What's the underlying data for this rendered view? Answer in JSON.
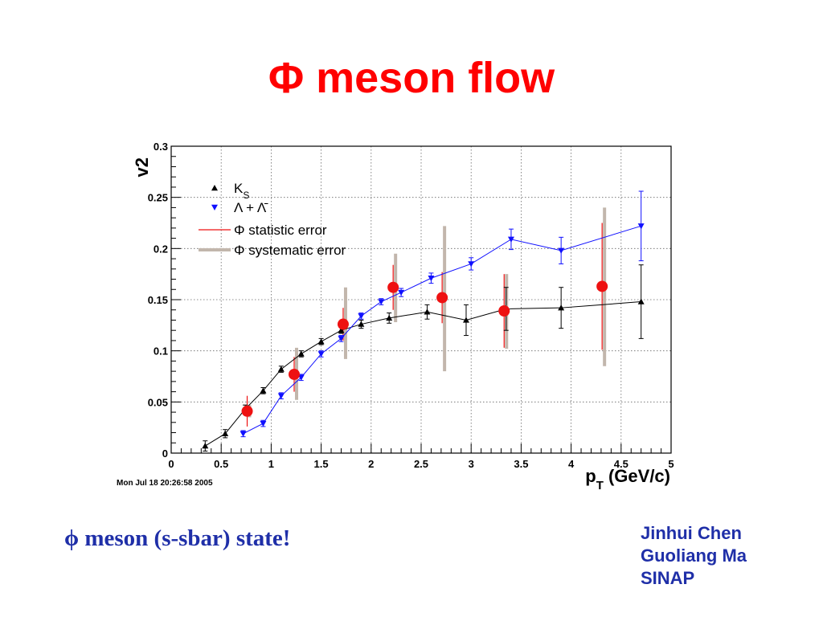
{
  "slide": {
    "title": "Φ meson flow",
    "caption": "ϕ meson (s-sbar) state!",
    "authors": [
      "Jinhui Chen",
      "Guoliang Ma",
      "SINAP"
    ]
  },
  "chart_data": {
    "type": "scatter",
    "title": "",
    "xlabel_main": "p",
    "xlabel_sub": "T",
    "xlabel_rest": " (GeV/c)",
    "ylabel": "v2",
    "xlim": [
      0,
      5
    ],
    "ylim": [
      0,
      0.3
    ],
    "x_ticks": [
      0,
      0.5,
      1,
      1.5,
      2,
      2.5,
      3,
      3.5,
      4,
      4.5,
      5
    ],
    "x_tick_labels": [
      "0",
      "0.5",
      "1",
      "1.5",
      "2",
      "2.5",
      "3",
      "3.5",
      "4",
      "4.5",
      "5"
    ],
    "y_ticks": [
      0,
      0.05,
      0.1,
      0.15,
      0.2,
      0.25,
      0.3
    ],
    "y_tick_labels": [
      "0",
      "0.05",
      "0.1",
      "0.15",
      "0.2",
      "0.25",
      "0.3"
    ],
    "grid": true,
    "legend_position": "top-left",
    "timestamp": "Mon Jul 18 20:26:58 2005",
    "series": [
      {
        "name": "K",
        "name_sub": "S",
        "marker": "triangle-up",
        "color": "#000000",
        "line": true,
        "x": [
          0.34,
          0.54,
          0.74,
          0.92,
          1.1,
          1.3,
          1.5,
          1.7,
          1.9,
          2.18,
          2.56,
          2.95,
          3.35,
          3.9,
          4.7
        ],
        "y": [
          0.007,
          0.019,
          0.043,
          0.061,
          0.082,
          0.097,
          0.109,
          0.12,
          0.126,
          0.132,
          0.138,
          0.13,
          0.141,
          0.142,
          0.148
        ],
        "err": [
          0.005,
          0.004,
          0.004,
          0.003,
          0.003,
          0.003,
          0.003,
          0.003,
          0.004,
          0.005,
          0.007,
          0.015,
          0.021,
          0.02,
          0.036
        ]
      },
      {
        "name": "Λ + Λ̄",
        "marker": "triangle-down",
        "color": "#1010ff",
        "line": true,
        "x": [
          0.72,
          0.92,
          1.1,
          1.3,
          1.5,
          1.7,
          1.9,
          2.1,
          2.3,
          2.6,
          3.0,
          3.4,
          3.9,
          4.7
        ],
        "y": [
          0.019,
          0.029,
          0.056,
          0.074,
          0.097,
          0.112,
          0.134,
          0.148,
          0.157,
          0.171,
          0.185,
          0.209,
          0.198,
          0.222
        ],
        "err": [
          0.003,
          0.003,
          0.003,
          0.003,
          0.003,
          0.003,
          0.003,
          0.003,
          0.004,
          0.005,
          0.006,
          0.01,
          0.013,
          0.034
        ]
      },
      {
        "name": "Φ statistic error",
        "marker": "circle",
        "color": "#ee1111",
        "line": false,
        "x": [
          0.76,
          1.23,
          1.72,
          2.22,
          2.71,
          3.33,
          4.31
        ],
        "y": [
          0.041,
          0.077,
          0.126,
          0.162,
          0.152,
          0.139,
          0.163
        ],
        "err": [
          0.015,
          0.017,
          0.016,
          0.022,
          0.025,
          0.036,
          0.062
        ]
      },
      {
        "name": "Φ systematic error",
        "color": "#c2b6ac",
        "x": [
          0.76,
          1.23,
          1.72,
          2.22,
          2.71,
          3.33,
          4.31
        ],
        "y": [
          0.041,
          0.077,
          0.126,
          0.162,
          0.152,
          0.139,
          0.163
        ],
        "sys_low": [
          0.035,
          0.052,
          0.092,
          0.128,
          0.08,
          0.102,
          0.085
        ],
        "sys_high": [
          0.047,
          0.103,
          0.162,
          0.195,
          0.222,
          0.175,
          0.24
        ]
      }
    ]
  }
}
